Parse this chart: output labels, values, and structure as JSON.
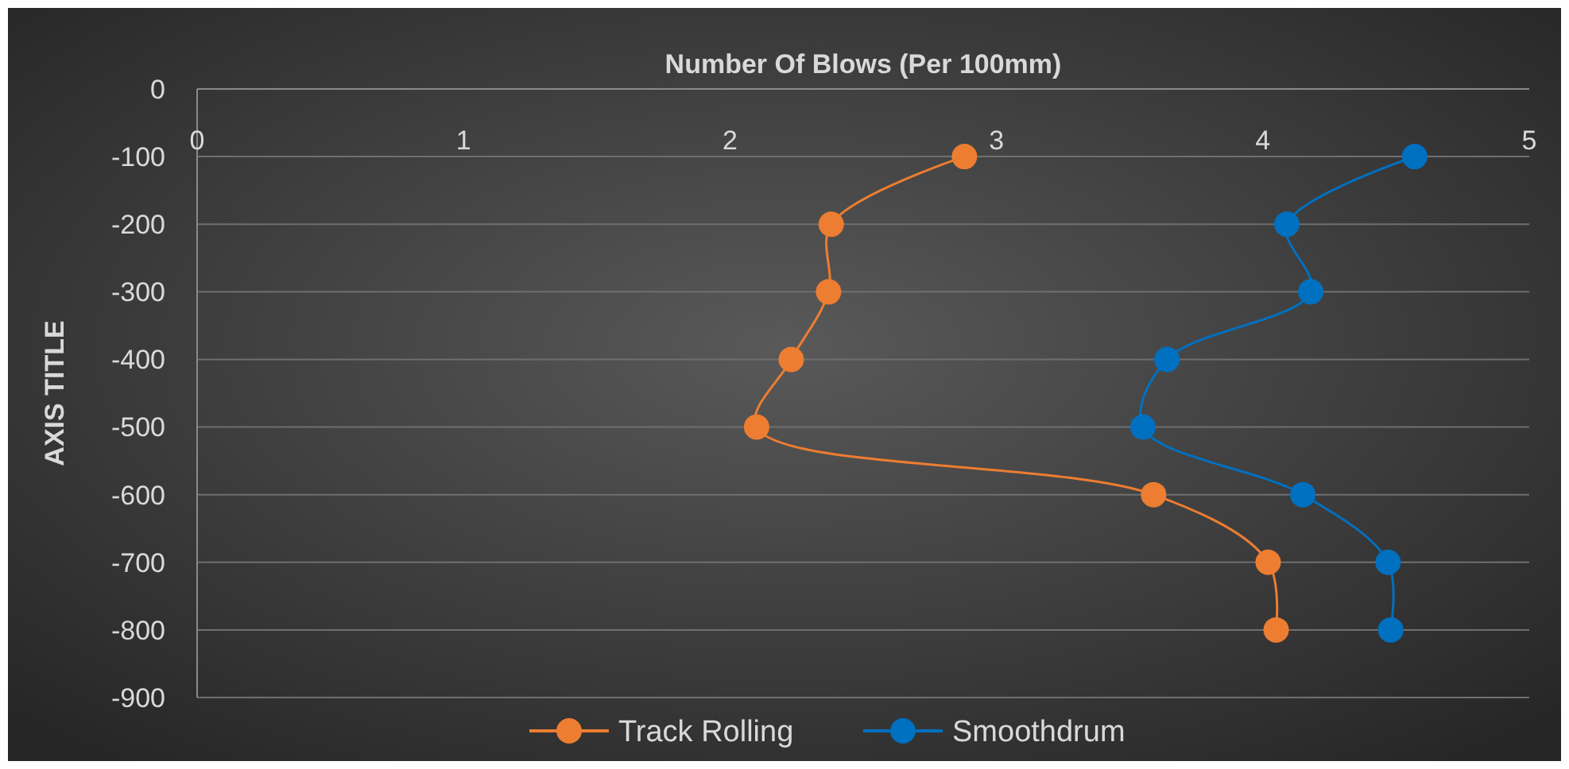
{
  "chart_data": {
    "type": "line",
    "xlabel": "Number Of Blows (Per 100mm)",
    "ylabel": "AXIS TITLE",
    "xlim": [
      0,
      5
    ],
    "xticks": [
      0,
      1,
      2,
      3,
      4,
      5
    ],
    "ylim": [
      -900,
      0
    ],
    "yticks": [
      -900,
      -800,
      -700,
      -600,
      -500,
      -400,
      -300,
      -200,
      -100,
      0
    ],
    "grid": "y",
    "legend": "bottom",
    "marker": "circle",
    "line_style": "solid",
    "series": [
      {
        "name": "Track Rolling",
        "color": "#ed7d31",
        "x": [
          2.88,
          2.38,
          2.37,
          2.23,
          2.1,
          3.59,
          4.02,
          4.05
        ],
        "values": [
          -100,
          -200,
          -300,
          -400,
          -500,
          -600,
          -700,
          -800
        ]
      },
      {
        "name": "Smoothdrum",
        "color": "#0070c0",
        "x": [
          4.57,
          4.09,
          4.18,
          3.64,
          3.55,
          4.15,
          4.47,
          4.48
        ],
        "values": [
          -100,
          -200,
          -300,
          -400,
          -500,
          -600,
          -700,
          -800
        ]
      }
    ]
  }
}
